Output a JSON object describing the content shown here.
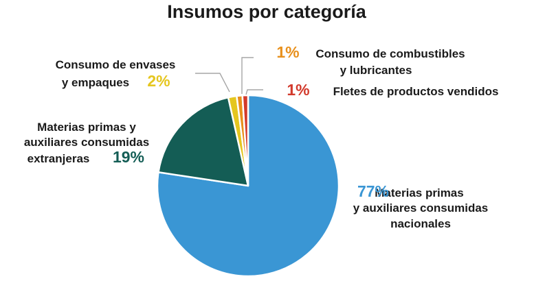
{
  "chart_data": {
    "type": "pie",
    "title": "Insumos por categoría",
    "slices": [
      {
        "name": "Materias primas y auxiliares consumidas nacionales",
        "label_lines": [
          "Materias primas",
          "y auxiliares consumidas",
          "nacionales"
        ],
        "value": 77,
        "value_label": "77%",
        "color": "#3a96d4"
      },
      {
        "name": "Materias primas y auxiliares consumidas extranjeras",
        "label_lines": [
          "Materias primas y",
          "auxiliares consumidas",
          "extranjeras"
        ],
        "value": 19,
        "value_label": "19%",
        "color": "#145d55"
      },
      {
        "name": "Consumo de envases y empaques",
        "label_lines": [
          "Consumo de envases",
          "y empaques"
        ],
        "value": 1.5,
        "value_label": "2%",
        "color": "#e5c61f"
      },
      {
        "name": "Consumo de combustibles y lubricantes",
        "label_lines": [
          "Consumo de combustibles",
          "y lubricantes"
        ],
        "value": 1,
        "value_label": "1%",
        "color": "#e8901c"
      },
      {
        "name": "Fletes de productos vendidos",
        "label_lines": [
          "Fletes de productos vendidos"
        ],
        "value": 1,
        "value_label": "1%",
        "color": "#d23a2c"
      }
    ]
  }
}
